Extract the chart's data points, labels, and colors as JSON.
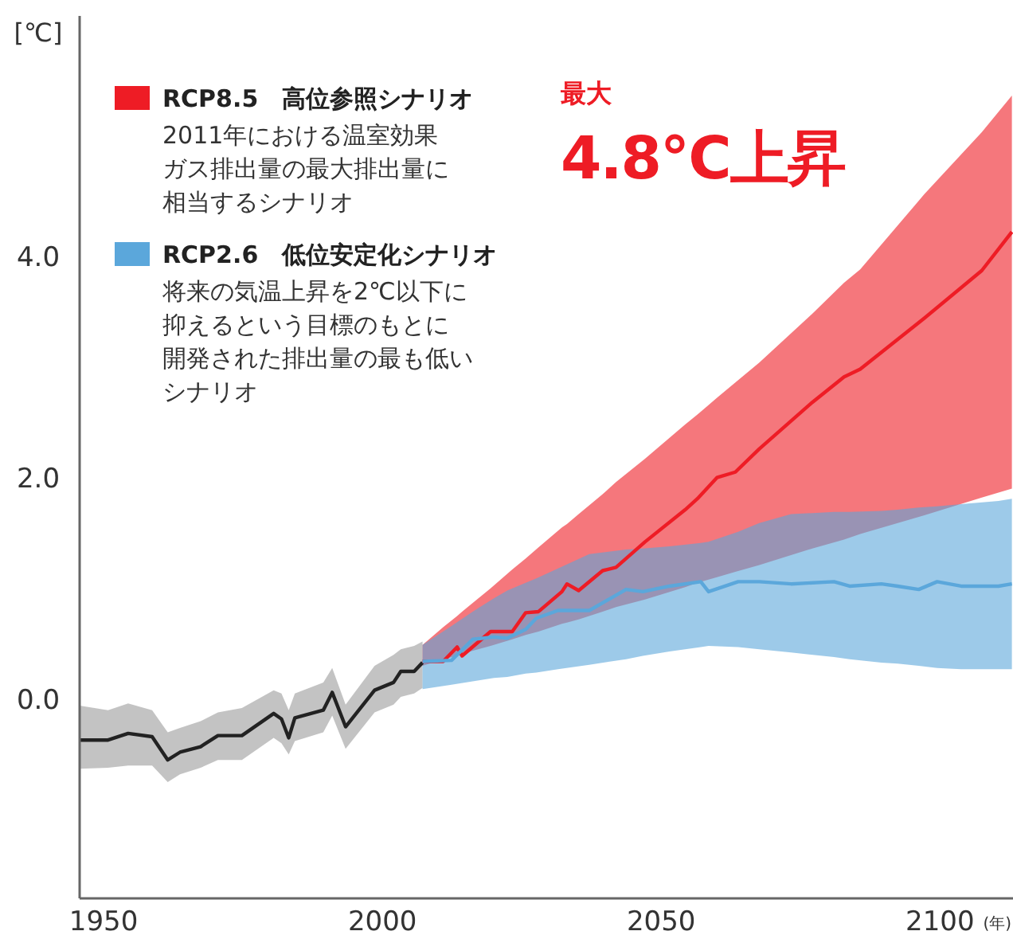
{
  "chart_data": {
    "type": "line",
    "ylabel": "[℃]",
    "xlabel": "(年)",
    "xlim": [
      1945.7,
      2113.1
    ],
    "ylim": [
      -1.8,
      6.17
    ],
    "xticks": [
      1950,
      2000,
      2050,
      2100
    ],
    "yticks": [
      {
        "value": 0,
        "label": "0.0"
      },
      {
        "value": 2,
        "label": "2.0"
      },
      {
        "value": 4,
        "label": "4.0"
      }
    ],
    "grid": false,
    "legend": "top left",
    "annotations": [
      "2011年における温室効果",
      "ガス排出量の最大排出量に",
      "相当するシナリオ",
      "将来の気温上昇を2℃以下に",
      "抑えるという目標のもとに",
      "開発された排出量の最も低い",
      "シナリオ",
      "最大",
      "4.8℃上昇"
    ],
    "series": [
      {
        "color": "#222222",
        "x": [
          1945.7,
          1950.8,
          1954.4,
          1958.7,
          1961.5,
          1963.7,
          1967.4,
          1970.5,
          1974.8,
          1980.5,
          1981.9,
          1983.2,
          1984.3,
          1989.4,
          1991.0,
          1993.4,
          1998.6,
          2002.0,
          2003.3,
          2005.7,
          2007.2
        ],
        "values": [
          -0.37,
          -0.37,
          -0.31,
          -0.34,
          -0.55,
          -0.48,
          -0.43,
          -0.33,
          -0.33,
          -0.13,
          -0.18,
          -0.35,
          -0.17,
          -0.1,
          0.06,
          -0.25,
          0.08,
          0.15,
          0.25,
          0.25,
          0.33
        ],
        "lower": [
          -0.63,
          -0.62,
          -0.6,
          -0.6,
          -0.75,
          -0.68,
          -0.62,
          -0.55,
          -0.55,
          -0.35,
          -0.4,
          -0.5,
          -0.38,
          -0.3,
          -0.15,
          -0.45,
          -0.12,
          -0.05,
          0.02,
          0.05,
          0.1
        ],
        "upper": [
          -0.06,
          -0.1,
          -0.04,
          -0.1,
          -0.3,
          -0.26,
          -0.2,
          -0.12,
          -0.08,
          0.08,
          0.05,
          -0.1,
          0.05,
          0.15,
          0.28,
          -0.05,
          0.3,
          0.4,
          0.45,
          0.48,
          0.52
        ]
      },
      {
        "name": "RCP8.5　高位参照シナリオ",
        "color": "#ee1c25",
        "x": [
          2007.2,
          2010.9,
          2013.4,
          2014.3,
          2019.4,
          2023.3,
          2025.7,
          2028.0,
          2032.2,
          2033.1,
          2035.2,
          2039.5,
          2041.9,
          2047.1,
          2054.3,
          2056.5,
          2060.0,
          2063.3,
          2067.6,
          2077.1,
          2082.8,
          2085.7,
          2097.2,
          2107.5,
          2112.9
        ],
        "values": [
          0.34,
          0.34,
          0.47,
          0.39,
          0.61,
          0.61,
          0.78,
          0.79,
          0.97,
          1.04,
          0.98,
          1.16,
          1.19,
          1.42,
          1.71,
          1.81,
          2.0,
          2.05,
          2.26,
          2.68,
          2.91,
          2.98,
          3.44,
          3.87,
          4.22
        ],
        "lower": [
          0.3,
          0.36,
          0.39,
          0.41,
          0.48,
          0.54,
          0.58,
          0.61,
          0.68,
          0.69,
          0.72,
          0.79,
          0.83,
          0.9,
          1.01,
          1.05,
          1.1,
          1.15,
          1.21,
          1.36,
          1.44,
          1.49,
          1.66,
          1.82,
          1.9
        ],
        "upper": [
          0.49,
          0.65,
          0.75,
          0.79,
          1.0,
          1.17,
          1.27,
          1.37,
          1.55,
          1.58,
          1.67,
          1.85,
          1.96,
          2.17,
          2.48,
          2.57,
          2.72,
          2.86,
          3.04,
          3.48,
          3.76,
          3.88,
          4.56,
          5.12,
          5.45
        ]
      },
      {
        "name": "RCP2.6　低位安定化シナリオ",
        "color": "#5ba7db",
        "x": [
          2007.2,
          2012.4,
          2016.2,
          2020.0,
          2022.4,
          2025.7,
          2027.6,
          2031.5,
          2037.1,
          2043.7,
          2046.7,
          2051.5,
          2057.1,
          2058.5,
          2063.8,
          2067.6,
          2073.3,
          2081.0,
          2083.8,
          2089.5,
          2092.4,
          2096.2,
          2099.5,
          2103.8,
          2110.5,
          2112.9
        ],
        "values": [
          0.34,
          0.35,
          0.54,
          0.56,
          0.55,
          0.63,
          0.73,
          0.8,
          0.8,
          0.99,
          0.97,
          1.02,
          1.06,
          0.97,
          1.06,
          1.06,
          1.04,
          1.06,
          1.02,
          1.04,
          1.02,
          0.99,
          1.06,
          1.02,
          1.02,
          1.04
        ],
        "lower": [
          0.09,
          0.13,
          0.16,
          0.19,
          0.2,
          0.23,
          0.24,
          0.27,
          0.31,
          0.36,
          0.39,
          0.43,
          0.47,
          0.48,
          0.47,
          0.45,
          0.42,
          0.38,
          0.36,
          0.33,
          0.32,
          0.3,
          0.28,
          0.27,
          0.27,
          0.27
        ],
        "upper": [
          0.49,
          0.66,
          0.79,
          0.91,
          0.98,
          1.05,
          1.09,
          1.18,
          1.31,
          1.35,
          1.36,
          1.38,
          1.41,
          1.42,
          1.51,
          1.59,
          1.67,
          1.69,
          1.69,
          1.7,
          1.71,
          1.73,
          1.74,
          1.76,
          1.79,
          1.81
        ]
      }
    ]
  }
}
